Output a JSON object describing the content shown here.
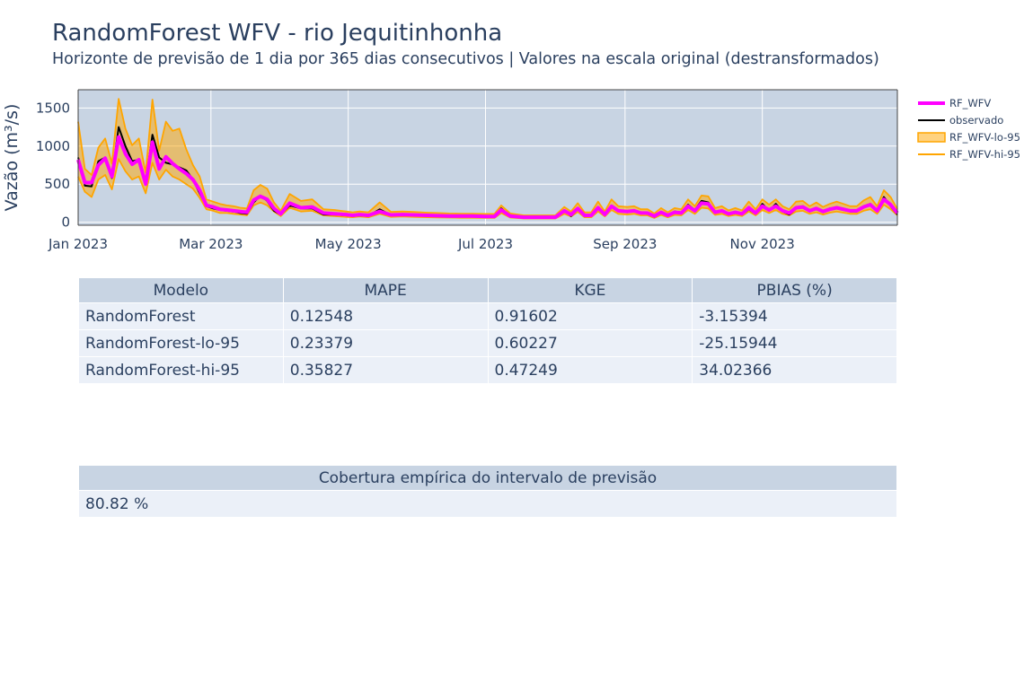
{
  "title": "RandomForest WFV - rio Jequitinhonha",
  "subtitle": "Horizonte de previsão de 1 dia por 365 dias consecutivos | Valores na escala original (destransformados)",
  "colors": {
    "plot_bg": "#c8d4e3",
    "grid": "#ffffff",
    "rf_wfv": "#ff00ff",
    "observado": "#000000",
    "interval": "#ffa500",
    "interval_fill": "rgba(255,165,0,0.5)",
    "text": "#2a3f5f",
    "table_header": "#c8d4e3",
    "table_cell": "#ebf0f8"
  },
  "chart_data": {
    "type": "line",
    "title": "RandomForest WFV - rio Jequitinhonha",
    "subtitle": "Horizonte de previsão de 1 dia por 365 dias consecutivos | Valores na escala original (destransformados)",
    "xlabel": "",
    "ylabel": "Vazão (m³/s)",
    "xlim": [
      "2023-01-01",
      "2023-12-31"
    ],
    "ylim": [
      -40,
      1740
    ],
    "x_ticks": [
      {
        "date": "2023-01-01",
        "label": "Jan 2023"
      },
      {
        "date": "2023-03-01",
        "label": "Mar 2023"
      },
      {
        "date": "2023-05-01",
        "label": "May 2023"
      },
      {
        "date": "2023-07-01",
        "label": "Jul 2023"
      },
      {
        "date": "2023-09-01",
        "label": "Sep 2023"
      },
      {
        "date": "2023-11-01",
        "label": "Nov 2023"
      }
    ],
    "y_ticks": [
      0,
      500,
      1000,
      1500
    ],
    "grid": true,
    "legend_position": "top-right",
    "x": [
      "2023-01-01",
      "2023-01-04",
      "2023-01-07",
      "2023-01-10",
      "2023-01-13",
      "2023-01-16",
      "2023-01-19",
      "2023-01-22",
      "2023-01-25",
      "2023-01-28",
      "2023-01-31",
      "2023-02-03",
      "2023-02-06",
      "2023-02-09",
      "2023-02-12",
      "2023-02-15",
      "2023-02-18",
      "2023-02-21",
      "2023-02-24",
      "2023-02-27",
      "2023-03-02",
      "2023-03-05",
      "2023-03-08",
      "2023-03-11",
      "2023-03-14",
      "2023-03-17",
      "2023-03-20",
      "2023-03-23",
      "2023-03-26",
      "2023-03-29",
      "2023-04-01",
      "2023-04-05",
      "2023-04-10",
      "2023-04-15",
      "2023-04-20",
      "2023-04-25",
      "2023-04-30",
      "2023-05-03",
      "2023-05-06",
      "2023-05-10",
      "2023-05-15",
      "2023-05-20",
      "2023-05-25",
      "2023-05-30",
      "2023-06-05",
      "2023-06-10",
      "2023-06-15",
      "2023-06-20",
      "2023-06-25",
      "2023-07-01",
      "2023-07-05",
      "2023-07-08",
      "2023-07-12",
      "2023-07-18",
      "2023-07-25",
      "2023-08-01",
      "2023-08-05",
      "2023-08-08",
      "2023-08-11",
      "2023-08-14",
      "2023-08-17",
      "2023-08-20",
      "2023-08-23",
      "2023-08-26",
      "2023-08-29",
      "2023-09-02",
      "2023-09-05",
      "2023-09-08",
      "2023-09-11",
      "2023-09-14",
      "2023-09-17",
      "2023-09-20",
      "2023-09-23",
      "2023-09-26",
      "2023-09-29",
      "2023-10-02",
      "2023-10-05",
      "2023-10-08",
      "2023-10-11",
      "2023-10-14",
      "2023-10-17",
      "2023-10-20",
      "2023-10-23",
      "2023-10-26",
      "2023-10-29",
      "2023-11-01",
      "2023-11-04",
      "2023-11-07",
      "2023-11-10",
      "2023-11-13",
      "2023-11-16",
      "2023-11-19",
      "2023-11-22",
      "2023-11-25",
      "2023-11-28",
      "2023-12-01",
      "2023-12-04",
      "2023-12-07",
      "2023-12-10",
      "2023-12-13",
      "2023-12-16",
      "2023-12-19",
      "2023-12-22",
      "2023-12-25",
      "2023-12-28",
      "2023-12-31"
    ],
    "series": [
      {
        "name": "RF_WFV",
        "color": "#ff00ff",
        "values": [
          820,
          520,
          520,
          750,
          840,
          600,
          1120,
          900,
          760,
          820,
          500,
          1050,
          700,
          860,
          770,
          700,
          640,
          560,
          420,
          220,
          200,
          170,
          160,
          150,
          140,
          130,
          290,
          340,
          300,
          180,
          110,
          250,
          190,
          200,
          120,
          110,
          100,
          90,
          100,
          90,
          140,
          95,
          100,
          95,
          90,
          85,
          80,
          80,
          80,
          75,
          75,
          160,
          80,
          65,
          65,
          65,
          150,
          100,
          180,
          90,
          90,
          190,
          100,
          210,
          150,
          140,
          150,
          120,
          120,
          80,
          130,
          90,
          130,
          120,
          210,
          150,
          250,
          240,
          130,
          150,
          110,
          130,
          110,
          190,
          120,
          210,
          160,
          210,
          150,
          120,
          190,
          200,
          150,
          180,
          140,
          170,
          190,
          170,
          150,
          150,
          200,
          230,
          150,
          300,
          230,
          120
        ]
      },
      {
        "name": "observado",
        "color": "#000000",
        "values": [
          850,
          480,
          470,
          800,
          850,
          580,
          1250,
          1000,
          800,
          820,
          520,
          1150,
          850,
          780,
          760,
          720,
          680,
          560,
          380,
          210,
          180,
          160,
          150,
          140,
          120,
          110,
          260,
          350,
          280,
          150,
          100,
          220,
          180,
          180,
          100,
          100,
          90,
          80,
          90,
          80,
          170,
          90,
          95,
          90,
          85,
          80,
          78,
          75,
          75,
          72,
          70,
          180,
          75,
          60,
          60,
          60,
          160,
          80,
          170,
          80,
          90,
          200,
          90,
          200,
          160,
          130,
          160,
          120,
          110,
          70,
          120,
          80,
          140,
          130,
          230,
          160,
          280,
          260,
          120,
          140,
          100,
          120,
          100,
          170,
          110,
          240,
          150,
          240,
          140,
          100,
          180,
          210,
          140,
          170,
          130,
          180,
          180,
          160,
          140,
          140,
          210,
          240,
          150,
          330,
          210,
          100
        ]
      },
      {
        "name": "RF_WFV-lo-95",
        "color": "#ffa500",
        "values": [
          600,
          400,
          330,
          560,
          620,
          430,
          830,
          670,
          560,
          600,
          380,
          780,
          560,
          690,
          600,
          560,
          500,
          440,
          320,
          170,
          150,
          120,
          120,
          110,
          100,
          90,
          220,
          260,
          220,
          140,
          80,
          190,
          140,
          150,
          90,
          80,
          70,
          65,
          75,
          65,
          110,
          70,
          75,
          70,
          65,
          62,
          60,
          58,
          58,
          55,
          55,
          120,
          60,
          48,
          48,
          48,
          110,
          75,
          135,
          65,
          65,
          140,
          75,
          160,
          110,
          100,
          110,
          90,
          90,
          55,
          95,
          65,
          95,
          90,
          160,
          110,
          190,
          180,
          95,
          110,
          80,
          95,
          80,
          140,
          90,
          160,
          120,
          160,
          110,
          90,
          140,
          150,
          110,
          130,
          100,
          125,
          140,
          125,
          110,
          110,
          150,
          170,
          110,
          230,
          170,
          90
        ]
      },
      {
        "name": "RF_WFV-hi-95",
        "color": "#ffa500",
        "values": [
          1320,
          700,
          620,
          980,
          1100,
          770,
          1620,
          1230,
          1010,
          1100,
          650,
          1610,
          940,
          1320,
          1200,
          1230,
          960,
          750,
          600,
          300,
          270,
          240,
          220,
          210,
          190,
          180,
          420,
          490,
          440,
          260,
          150,
          370,
          280,
          300,
          170,
          160,
          140,
          130,
          140,
          130,
          260,
          135,
          140,
          135,
          125,
          120,
          115,
          112,
          112,
          108,
          108,
          220,
          115,
          90,
          90,
          90,
          200,
          140,
          250,
          130,
          130,
          270,
          140,
          300,
          210,
          200,
          210,
          170,
          170,
          115,
          185,
          130,
          185,
          170,
          300,
          210,
          350,
          340,
          185,
          210,
          155,
          185,
          155,
          270,
          170,
          300,
          230,
          300,
          210,
          170,
          270,
          280,
          210,
          260,
          200,
          240,
          270,
          240,
          210,
          210,
          285,
          330,
          210,
          420,
          330,
          170
        ]
      }
    ]
  },
  "legend": [
    {
      "name": "RF_WFV"
    },
    {
      "name": "observado"
    },
    {
      "name": "RF_WFV-lo-95"
    },
    {
      "name": "RF_WFV-hi-95"
    }
  ],
  "metrics_table": {
    "headers": [
      "Modelo",
      "MAPE",
      "KGE",
      "PBIAS (%)"
    ],
    "rows": [
      [
        "RandomForest",
        "0.12548",
        "0.91602",
        "-3.15394"
      ],
      [
        "RandomForest-lo-95",
        "0.23379",
        "0.60227",
        "-25.15944"
      ],
      [
        "RandomForest-hi-95",
        "0.35827",
        "0.47249",
        "34.02366"
      ]
    ]
  },
  "coverage_table": {
    "header": "Cobertura empírica do intervalo de previsão",
    "value": "80.82 %"
  }
}
